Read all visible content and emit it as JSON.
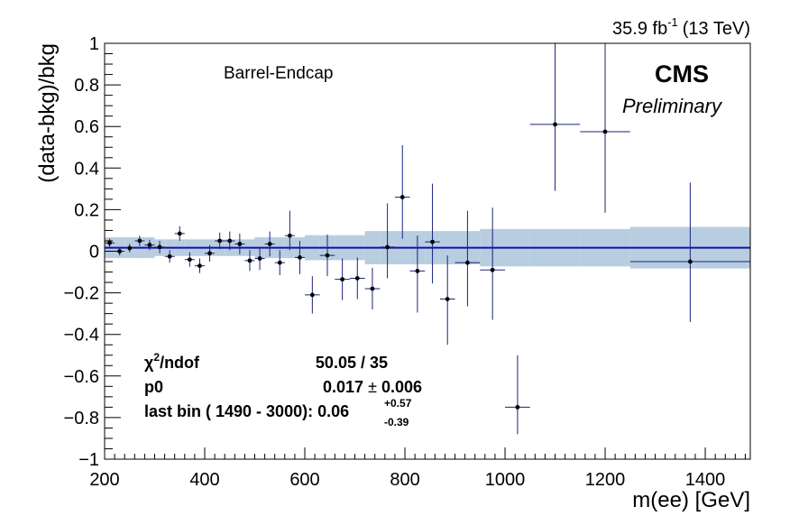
{
  "chart_data": {
    "type": "scatter",
    "xlabel": "m(ee) [GeV]",
    "ylabel": "(data-bkg)/bkg",
    "xlim": [
      200,
      1490
    ],
    "ylim": [
      -1,
      1
    ],
    "x_ticks": [
      200,
      400,
      600,
      800,
      1000,
      1200,
      1400
    ],
    "y_ticks": [
      -1,
      -0.8,
      -0.6,
      -0.4,
      -0.2,
      0,
      0.2,
      0.4,
      0.6,
      0.8,
      1
    ],
    "x_tick_labels": [
      "200",
      "400",
      "600",
      "800",
      "1000",
      "1200",
      "1400"
    ],
    "y_tick_labels": [
      "−1",
      "−0.8",
      "−0.6",
      "−0.4",
      "−0.2",
      "0",
      "0.2",
      "0.4",
      "0.6",
      "0.8",
      "1"
    ],
    "grid": false,
    "luminosity_main": "35.9 fb",
    "luminosity_sup": "-1",
    "luminosity_energy": "(13 TeV)",
    "experiment": "CMS",
    "status": "Preliminary",
    "category": "Barrel-Endcap",
    "fit_line": 0.017,
    "fit_color": "#1010a8",
    "marker_color": "#000000",
    "errorbar_color": "#1a237e",
    "band_color": "#b8cde0",
    "fit_stats": {
      "chi2_label": "χ",
      "chi2_sup": "2",
      "chi2_label_rest": "/ndof",
      "chi2_value": "50.05 / 35",
      "p0_label": "p0",
      "p0_value": "0.017",
      "p0_pm": "±",
      "p0_err": "0.006",
      "last_bin_label": "last bin ( 1490 - 3000): 0.06",
      "last_bin_up": "+0.57",
      "last_bin_down": "-0.39"
    },
    "band": [
      [
        200,
        220,
        0.05
      ],
      [
        220,
        240,
        0.05
      ],
      [
        240,
        260,
        0.05
      ],
      [
        260,
        280,
        0.05
      ],
      [
        280,
        300,
        0.05
      ],
      [
        300,
        320,
        0.04
      ],
      [
        320,
        340,
        0.04
      ],
      [
        340,
        360,
        0.04
      ],
      [
        360,
        380,
        0.04
      ],
      [
        380,
        400,
        0.04
      ],
      [
        400,
        420,
        0.04
      ],
      [
        420,
        440,
        0.04
      ],
      [
        440,
        460,
        0.04
      ],
      [
        460,
        480,
        0.04
      ],
      [
        480,
        500,
        0.04
      ],
      [
        500,
        520,
        0.05
      ],
      [
        520,
        540,
        0.05
      ],
      [
        540,
        560,
        0.05
      ],
      [
        560,
        580,
        0.05
      ],
      [
        580,
        600,
        0.05
      ],
      [
        600,
        630,
        0.06
      ],
      [
        630,
        660,
        0.06
      ],
      [
        660,
        690,
        0.06
      ],
      [
        690,
        720,
        0.06
      ],
      [
        720,
        750,
        0.08
      ],
      [
        750,
        780,
        0.08
      ],
      [
        780,
        810,
        0.08
      ],
      [
        810,
        840,
        0.08
      ],
      [
        840,
        870,
        0.08
      ],
      [
        870,
        900,
        0.08
      ],
      [
        900,
        950,
        0.08
      ],
      [
        950,
        1000,
        0.09
      ],
      [
        1000,
        1050,
        0.09
      ],
      [
        1050,
        1150,
        0.09
      ],
      [
        1150,
        1250,
        0.09
      ],
      [
        1250,
        1490,
        0.1
      ]
    ],
    "points": [
      {
        "x": 210,
        "y": 0.04,
        "xerr": 10,
        "eup": 0.02,
        "edn": 0.02
      },
      {
        "x": 230,
        "y": 0.0,
        "xerr": 10,
        "eup": 0.02,
        "edn": 0.02
      },
      {
        "x": 250,
        "y": 0.015,
        "xerr": 10,
        "eup": 0.02,
        "edn": 0.02
      },
      {
        "x": 270,
        "y": 0.05,
        "xerr": 10,
        "eup": 0.025,
        "edn": 0.025
      },
      {
        "x": 290,
        "y": 0.03,
        "xerr": 10,
        "eup": 0.025,
        "edn": 0.025
      },
      {
        "x": 310,
        "y": 0.02,
        "xerr": 10,
        "eup": 0.03,
        "edn": 0.03
      },
      {
        "x": 330,
        "y": -0.025,
        "xerr": 10,
        "eup": 0.03,
        "edn": 0.03
      },
      {
        "x": 350,
        "y": 0.085,
        "xerr": 10,
        "eup": 0.035,
        "edn": 0.035
      },
      {
        "x": 370,
        "y": -0.04,
        "xerr": 10,
        "eup": 0.035,
        "edn": 0.035
      },
      {
        "x": 390,
        "y": -0.07,
        "xerr": 10,
        "eup": 0.035,
        "edn": 0.035
      },
      {
        "x": 410,
        "y": -0.01,
        "xerr": 10,
        "eup": 0.04,
        "edn": 0.04
      },
      {
        "x": 430,
        "y": 0.05,
        "xerr": 10,
        "eup": 0.04,
        "edn": 0.04
      },
      {
        "x": 450,
        "y": 0.05,
        "xerr": 10,
        "eup": 0.045,
        "edn": 0.045
      },
      {
        "x": 470,
        "y": 0.035,
        "xerr": 10,
        "eup": 0.05,
        "edn": 0.05
      },
      {
        "x": 490,
        "y": -0.045,
        "xerr": 10,
        "eup": 0.05,
        "edn": 0.05
      },
      {
        "x": 510,
        "y": -0.035,
        "xerr": 10,
        "eup": 0.055,
        "edn": 0.055
      },
      {
        "x": 530,
        "y": 0.035,
        "xerr": 10,
        "eup": 0.06,
        "edn": 0.06
      },
      {
        "x": 550,
        "y": -0.055,
        "xerr": 10,
        "eup": 0.06,
        "edn": 0.06
      },
      {
        "x": 570,
        "y": 0.075,
        "xerr": 10,
        "eup": 0.12,
        "edn": 0.07
      },
      {
        "x": 590,
        "y": -0.03,
        "xerr": 10,
        "eup": 0.08,
        "edn": 0.08
      },
      {
        "x": 615,
        "y": -0.21,
        "xerr": 15,
        "eup": 0.09,
        "edn": 0.09
      },
      {
        "x": 645,
        "y": -0.02,
        "xerr": 15,
        "eup": 0.1,
        "edn": 0.1
      },
      {
        "x": 675,
        "y": -0.135,
        "xerr": 15,
        "eup": 0.1,
        "edn": 0.1
      },
      {
        "x": 705,
        "y": -0.13,
        "xerr": 15,
        "eup": 0.1,
        "edn": 0.1
      },
      {
        "x": 735,
        "y": -0.18,
        "xerr": 15,
        "eup": 0.1,
        "edn": 0.1
      },
      {
        "x": 765,
        "y": 0.02,
        "xerr": 15,
        "eup": 0.21,
        "edn": 0.15
      },
      {
        "x": 795,
        "y": 0.26,
        "xerr": 15,
        "eup": 0.25,
        "edn": 0.2
      },
      {
        "x": 825,
        "y": -0.095,
        "xerr": 15,
        "eup": 0.17,
        "edn": 0.2
      },
      {
        "x": 855,
        "y": 0.045,
        "xerr": 15,
        "eup": 0.28,
        "edn": 0.2
      },
      {
        "x": 885,
        "y": -0.23,
        "xerr": 15,
        "eup": 0.21,
        "edn": 0.22
      },
      {
        "x": 925,
        "y": -0.055,
        "xerr": 25,
        "eup": 0.25,
        "edn": 0.21
      },
      {
        "x": 975,
        "y": -0.09,
        "xerr": 25,
        "eup": 0.3,
        "edn": 0.24
      },
      {
        "x": 1025,
        "y": -0.75,
        "xerr": 25,
        "eup": 0.25,
        "edn": 0.13
      },
      {
        "x": 1100,
        "y": 0.61,
        "xerr": 50,
        "eup": 0.4,
        "edn": 0.32
      },
      {
        "x": 1200,
        "y": 0.575,
        "xerr": 50,
        "eup": 0.43,
        "edn": 0.39
      },
      {
        "x": 1370,
        "y": -0.05,
        "xerr": 120,
        "eup": 0.38,
        "edn": 0.29
      }
    ]
  }
}
